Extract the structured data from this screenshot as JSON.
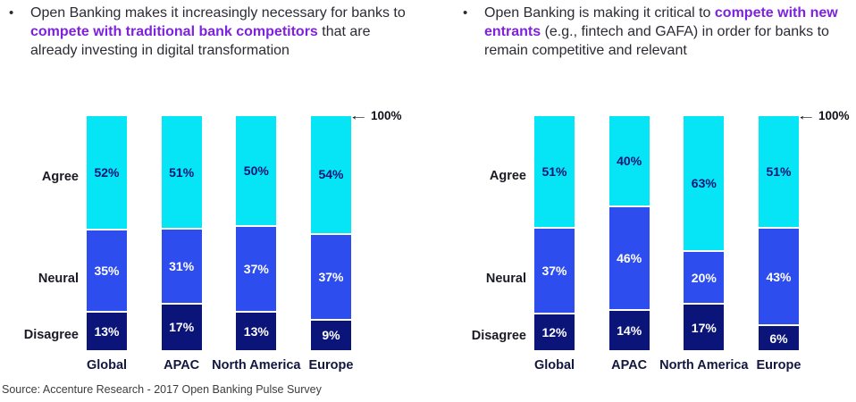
{
  "bullets": {
    "left": {
      "bullet_glyph": "•",
      "pre": "Open Banking makes it increasingly necessary for banks to ",
      "highlight": "compete with traditional bank competitors",
      "post": " that are already investing in digital transformation"
    },
    "right": {
      "bullet_glyph": "•",
      "pre": "Open Banking is making it critical to ",
      "highlight": "compete with new entrants",
      "post": " (e.g., fintech and GAFA) in order for banks to remain competitive and relevant"
    }
  },
  "icons": {
    "left_arrow": "←"
  },
  "annotations": {
    "full_height": "100%"
  },
  "source": "Source: Accenture Research - 2017 Open Banking Pulse Survey",
  "colors": {
    "agree": "#06e5f5",
    "neutral": "#2e4def",
    "disagree": "#0b1478",
    "highlight_text": "#7e22dd",
    "agree_value_text": "#0b1478",
    "light_value_text": "#ffffff"
  },
  "chart_data": [
    {
      "type": "bar",
      "stacked": true,
      "title": "",
      "categories": [
        "Global",
        "APAC",
        "North America",
        "Europe"
      ],
      "row_labels": [
        "Agree",
        "Neural",
        "Disagree"
      ],
      "series": [
        {
          "name": "Agree",
          "values": [
            52,
            51,
            50,
            54
          ]
        },
        {
          "name": "Neural",
          "values": [
            35,
            31,
            37,
            37
          ]
        },
        {
          "name": "Disagree",
          "values": [
            13,
            17,
            13,
            9
          ]
        }
      ],
      "unit": "%",
      "ylim": [
        0,
        100
      ],
      "annotation": "100%",
      "legend": "row labels on left side",
      "grid": false
    },
    {
      "type": "bar",
      "stacked": true,
      "title": "",
      "categories": [
        "Global",
        "APAC",
        "North America",
        "Europe"
      ],
      "row_labels": [
        "Agree",
        "Neural",
        "Disagree"
      ],
      "series": [
        {
          "name": "Agree",
          "values": [
            51,
            40,
            63,
            51
          ]
        },
        {
          "name": "Neural",
          "values": [
            37,
            46,
            20,
            43
          ]
        },
        {
          "name": "Disagree",
          "values": [
            12,
            14,
            17,
            6
          ]
        }
      ],
      "unit": "%",
      "ylim": [
        0,
        100
      ],
      "annotation": "100%",
      "legend": "row labels on left side",
      "grid": false
    }
  ]
}
